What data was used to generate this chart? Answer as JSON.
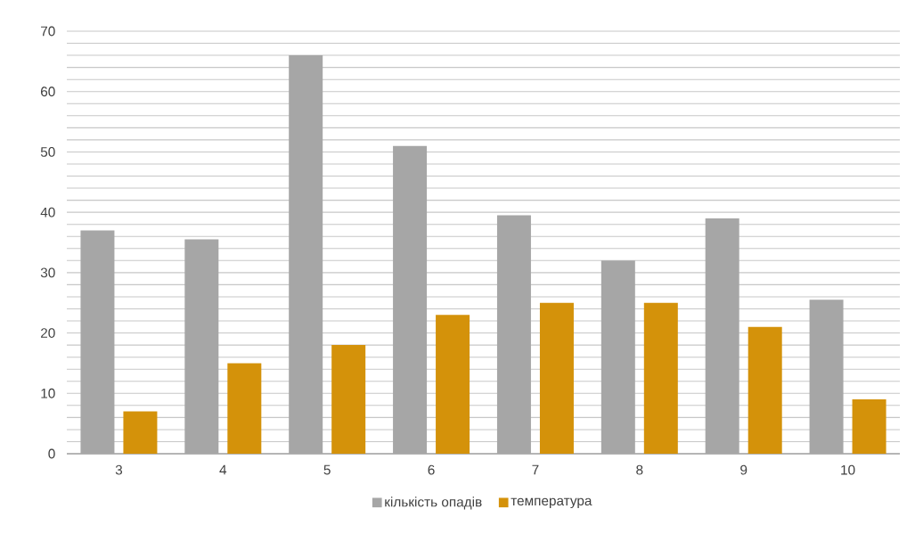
{
  "chart_data": {
    "type": "bar",
    "categories": [
      "3",
      "4",
      "5",
      "6",
      "7",
      "8",
      "9",
      "10"
    ],
    "series": [
      {
        "name": "кількість опадів",
        "color": "#a6a6a6",
        "values": [
          37,
          35.5,
          66,
          51,
          39.5,
          32,
          39,
          25.5
        ]
      },
      {
        "name": "температура",
        "color": "#d4920a",
        "values": [
          7,
          15,
          18,
          23,
          25,
          25,
          21,
          9
        ]
      }
    ],
    "ylim": [
      0,
      70
    ],
    "yticks": [
      0,
      {
        "value": 2,
        "label": null
      },
      {
        "value": 4,
        "label": null
      },
      {
        "value": 6,
        "label": null
      },
      {
        "value": 8,
        "label": null
      },
      10,
      {
        "value": 12,
        "label": null
      },
      {
        "value": 14,
        "label": null
      },
      {
        "value": 16,
        "label": null
      },
      {
        "value": 18,
        "label": null
      },
      20,
      {
        "value": 22,
        "label": null
      },
      {
        "value": 24,
        "label": null
      },
      {
        "value": 26,
        "label": null
      },
      {
        "value": 28,
        "label": null
      },
      30,
      {
        "value": 32,
        "label": null
      },
      {
        "value": 34,
        "label": null
      },
      {
        "value": 36,
        "label": null
      },
      {
        "value": 38,
        "label": null
      },
      40,
      {
        "value": 42,
        "label": null
      },
      {
        "value": 44,
        "label": null
      },
      {
        "value": 46,
        "label": null
      },
      {
        "value": 48,
        "label": null
      },
      50,
      {
        "value": 52,
        "label": null
      },
      {
        "value": 54,
        "label": null
      },
      {
        "value": 56,
        "label": null
      },
      {
        "value": 58,
        "label": null
      },
      60,
      {
        "value": 62,
        "label": null
      },
      {
        "value": 64,
        "label": null
      },
      {
        "value": 66,
        "label": null
      },
      {
        "value": 68,
        "label": null
      },
      70
    ],
    "grid": "y",
    "legend": "bottom"
  }
}
